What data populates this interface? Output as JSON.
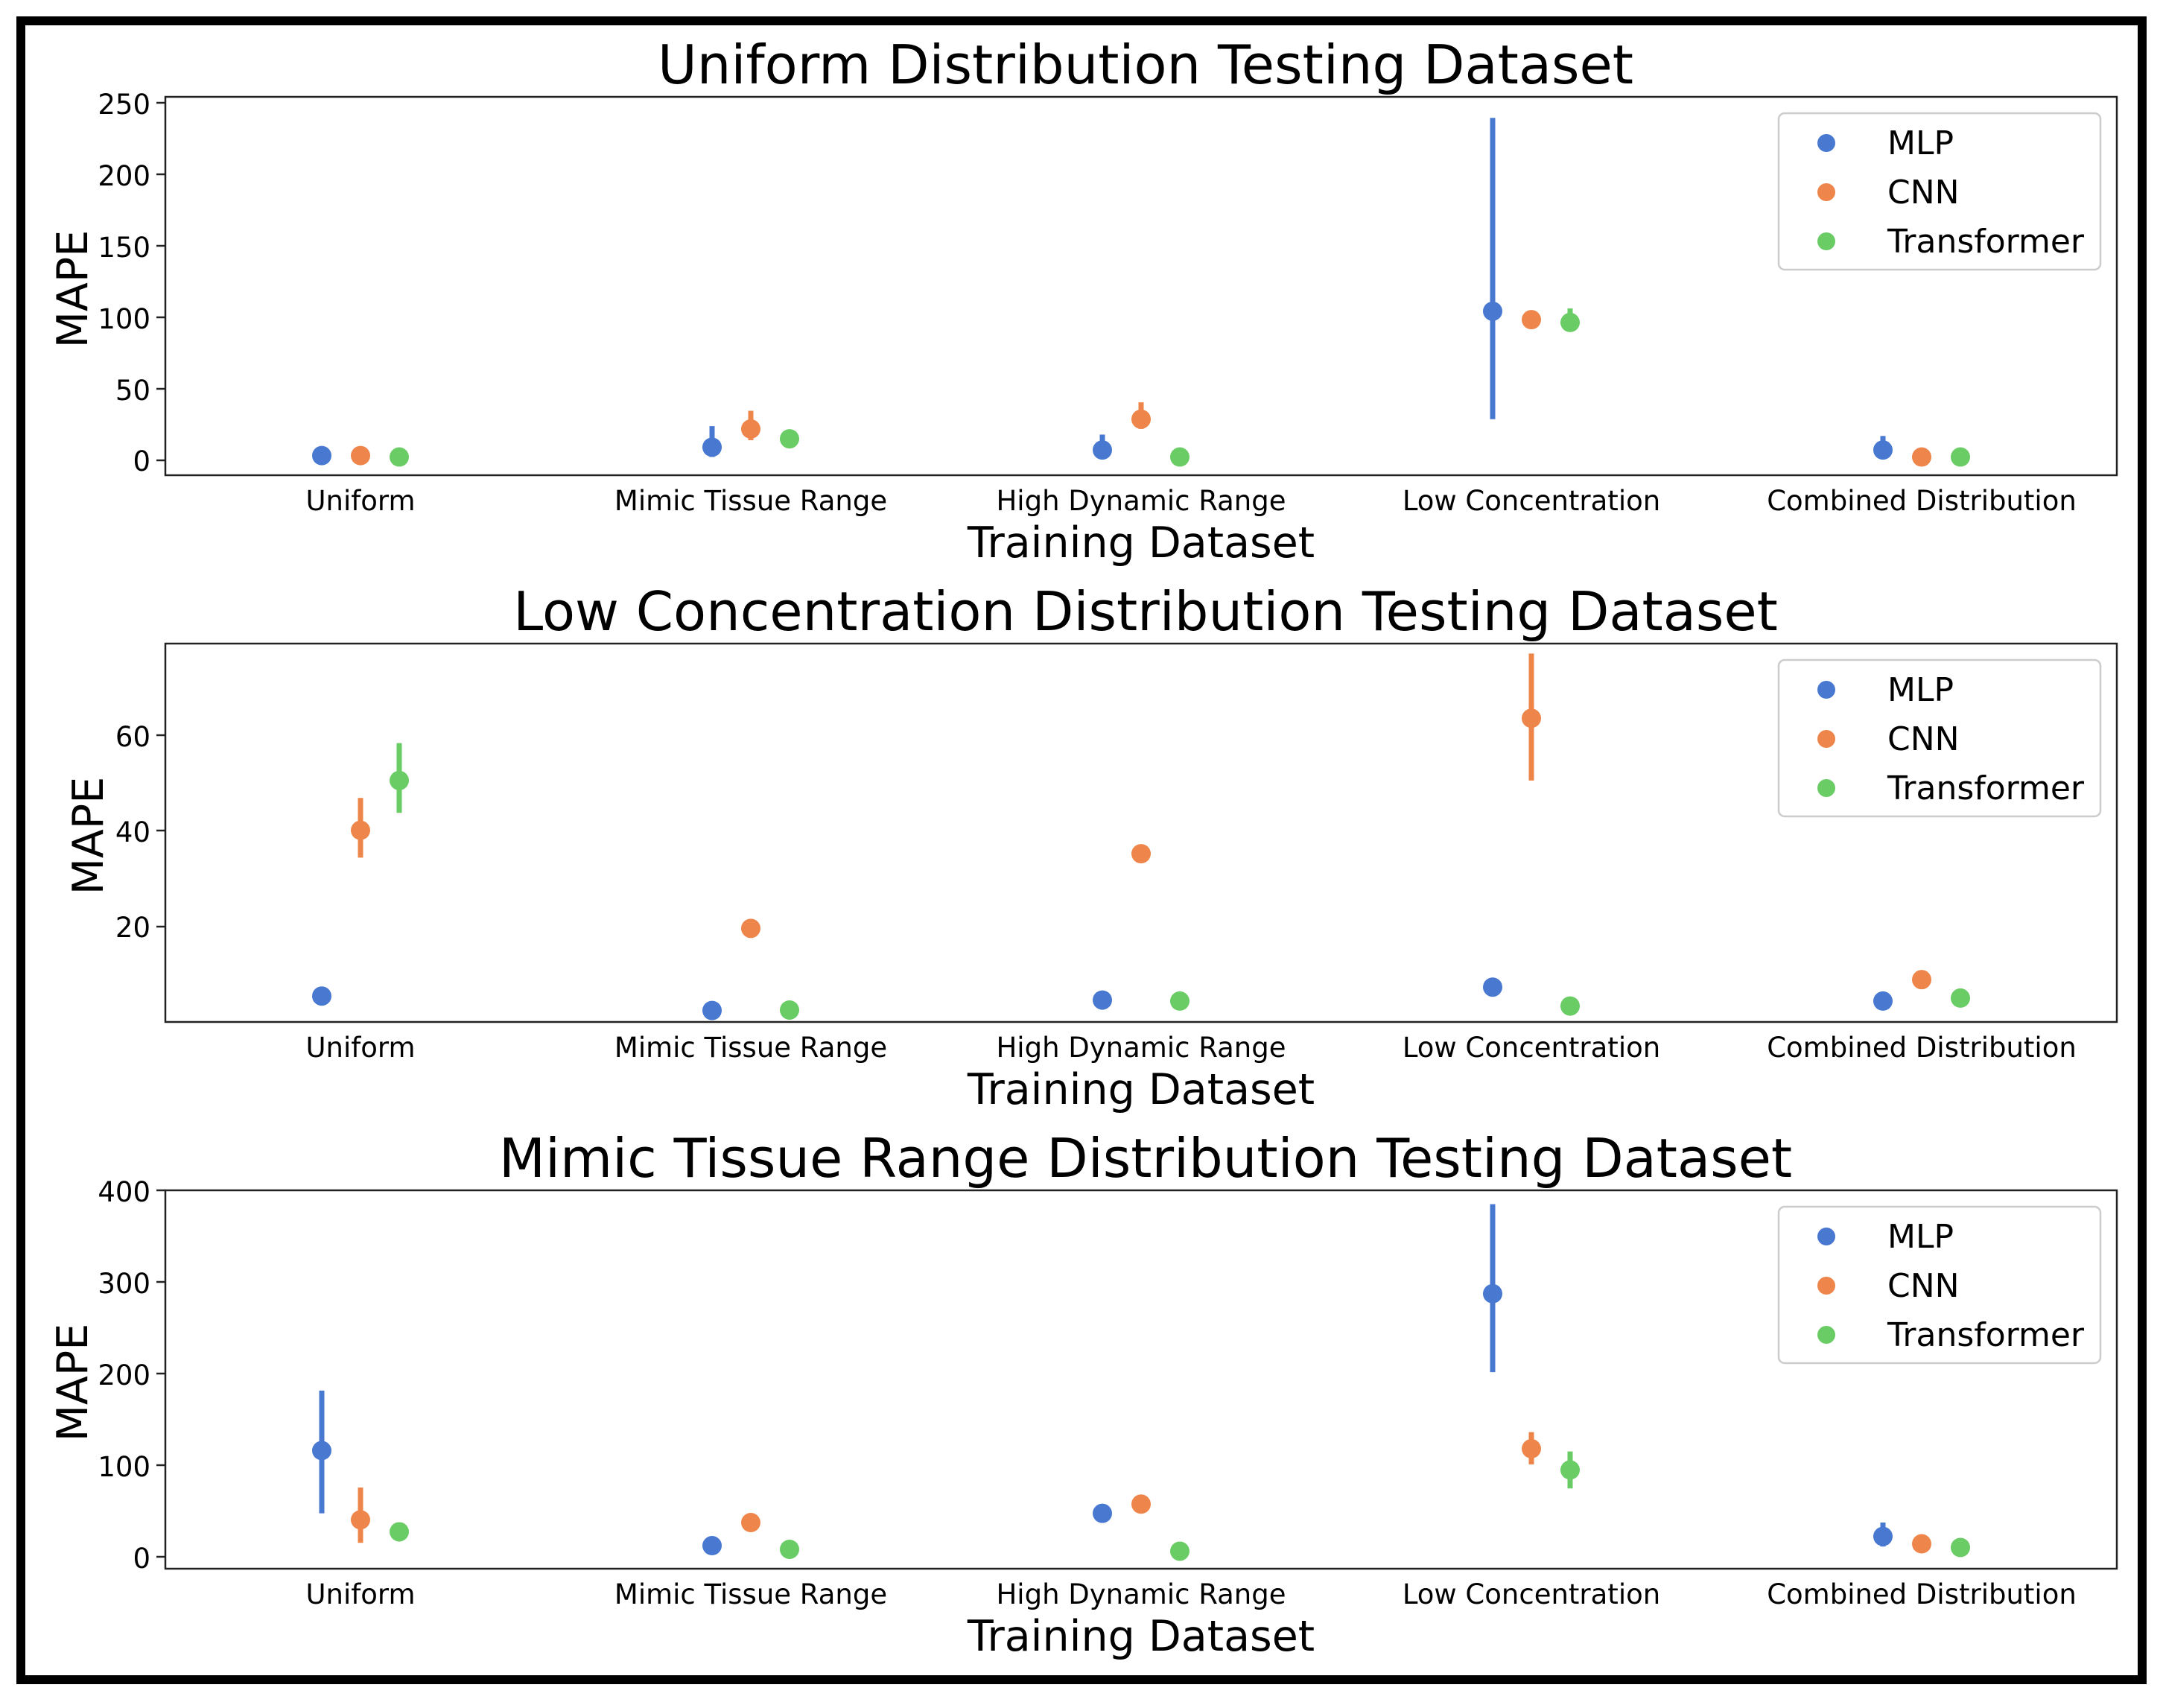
{
  "colors": {
    "MLP": "#4878d0",
    "CNN": "#ee854a",
    "Transformer": "#6acc64"
  },
  "chart_data": [
    {
      "type": "scatter",
      "title": "Uniform Distribution Testing Dataset",
      "xlabel": "Training Dataset",
      "ylabel": "MAPE",
      "categories": [
        "Uniform",
        "Mimic Tissue Range",
        "High Dynamic Range",
        "Low Concentration",
        "Combined Distribution"
      ],
      "ylim": [
        -10,
        260
      ],
      "yticks": [
        0,
        50,
        100,
        150,
        200,
        250
      ],
      "legend": {
        "placement": "top-right",
        "entries": [
          "MLP",
          "CNN",
          "Transformer"
        ]
      },
      "series": [
        {
          "name": "MLP",
          "values": [
            4,
            10,
            8,
            107,
            8
          ],
          "errors": [
            [
              4,
              4
            ],
            [
              3,
              25
            ],
            [
              3,
              19
            ],
            [
              30,
              245
            ],
            [
              3,
              18
            ]
          ]
        },
        {
          "name": "CNN",
          "values": [
            4,
            23,
            30,
            101,
            3
          ],
          "errors": [
            [
              4,
              4
            ],
            [
              15,
              36
            ],
            [
              23,
              42
            ],
            [
              101,
              101
            ],
            [
              3,
              3
            ]
          ]
        },
        {
          "name": "Transformer",
          "values": [
            3,
            16,
            3,
            99,
            3
          ],
          "errors": [
            [
              3,
              3
            ],
            [
              16,
              16
            ],
            [
              3,
              3
            ],
            [
              93,
              109
            ],
            [
              3,
              3
            ]
          ]
        }
      ]
    },
    {
      "type": "scatter",
      "title": "Low Concentration Distribution Testing Dataset",
      "xlabel": "Training Dataset",
      "ylabel": "MAPE",
      "categories": [
        "Uniform",
        "Mimic Tissue Range",
        "High Dynamic Range",
        "Low Concentration",
        "Combined Distribution"
      ],
      "ylim": [
        2,
        78
      ],
      "yticks": [
        20,
        40,
        60
      ],
      "legend": {
        "placement": "top-right",
        "entries": [
          "MLP",
          "CNN",
          "Transformer"
        ]
      },
      "series": [
        {
          "name": "MLP",
          "values": [
            7.2,
            4.3,
            6.4,
            9,
            6.2
          ],
          "errors": [
            [
              7.2,
              7.2
            ],
            [
              4.3,
              4.3
            ],
            [
              6.4,
              6.4
            ],
            [
              8.3,
              9.6
            ],
            [
              6.2,
              6.2
            ]
          ]
        },
        {
          "name": "CNN",
          "values": [
            40.5,
            20.8,
            35.8,
            63,
            10.5
          ],
          "errors": [
            [
              35,
              47
            ],
            [
              20.8,
              20.8
            ],
            [
              35.8,
              35.8
            ],
            [
              50.5,
              76
            ],
            [
              10.5,
              10.5
            ]
          ]
        },
        {
          "name": "Transformer",
          "values": [
            50.5,
            4.4,
            6.2,
            5.2,
            6.8
          ],
          "errors": [
            [
              44,
              58
            ],
            [
              4.4,
              4.4
            ],
            [
              6.2,
              6.2
            ],
            [
              5.2,
              5.2
            ],
            [
              6.8,
              6.8
            ]
          ]
        }
      ]
    },
    {
      "type": "scatter",
      "title": "Mimic Tissue Range Distribution Testing Dataset",
      "xlabel": "Training Dataset",
      "ylabel": "MAPE",
      "categories": [
        "Uniform",
        "Mimic Tissue Range",
        "High Dynamic Range",
        "Low Concentration",
        "Combined Distribution"
      ],
      "ylim": [
        -10,
        400
      ],
      "yticks": [
        0,
        100,
        200,
        300,
        400
      ],
      "legend": {
        "placement": "top-right",
        "entries": [
          "MLP",
          "CNN",
          "Transformer"
        ]
      },
      "series": [
        {
          "name": "MLP",
          "values": [
            118,
            15,
            50,
            288,
            25
          ],
          "errors": [
            [
              50,
              183
            ],
            [
              15,
              15
            ],
            [
              50,
              50
            ],
            [
              203,
              385
            ],
            [
              14,
              40
            ]
          ]
        },
        {
          "name": "CNN",
          "values": [
            43,
            40,
            60,
            120,
            17
          ],
          "errors": [
            [
              18,
              78
            ],
            [
              33,
              47
            ],
            [
              60,
              60
            ],
            [
              103,
              138
            ],
            [
              17,
              17
            ]
          ]
        },
        {
          "name": "Transformer",
          "values": [
            30,
            11,
            9,
            97,
            13
          ],
          "errors": [
            [
              30,
              30
            ],
            [
              11,
              11
            ],
            [
              9,
              9
            ],
            [
              77,
              117
            ],
            [
              13,
              13
            ]
          ]
        }
      ]
    }
  ]
}
